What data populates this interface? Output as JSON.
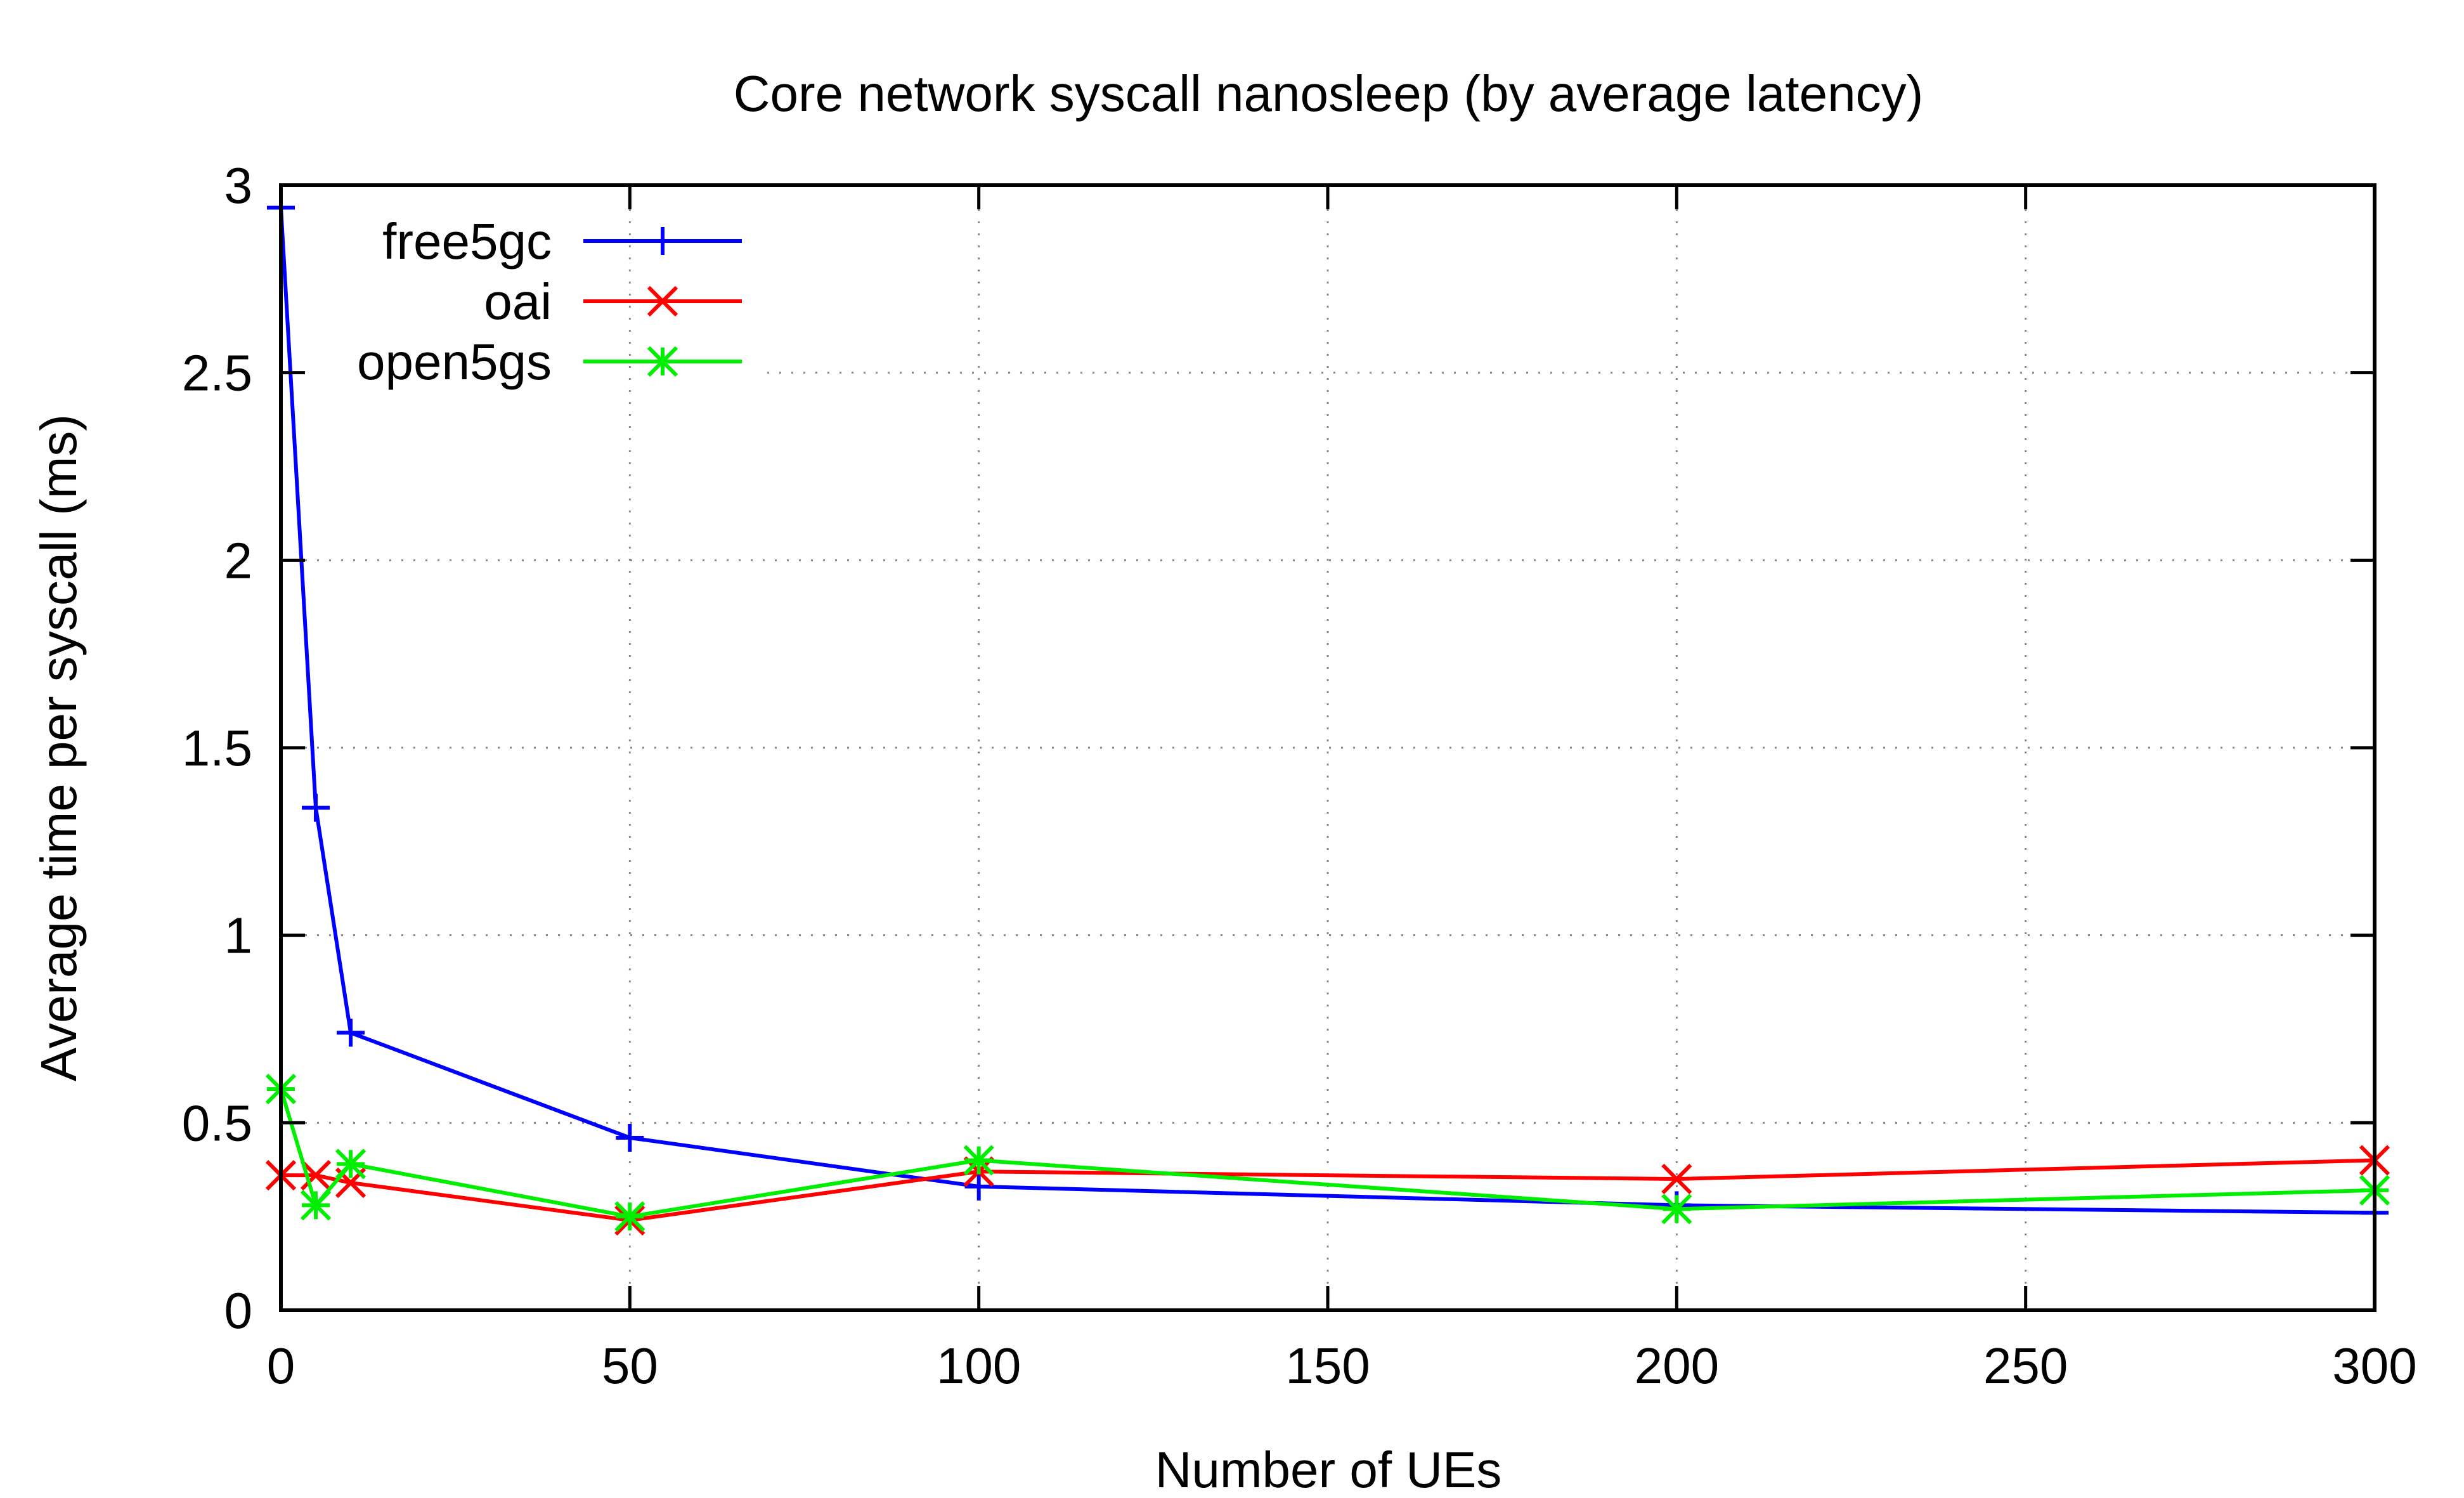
{
  "chart_data": {
    "type": "line",
    "title": "Core network syscall nanosleep (by average latency)",
    "xlabel": "Number of UEs",
    "ylabel": "Average time per syscall (ms)",
    "xlim": [
      0,
      300
    ],
    "ylim": [
      0,
      3
    ],
    "xticks": [
      "0",
      "50",
      "100",
      "150",
      "200",
      "250",
      "300"
    ],
    "yticks": [
      "0",
      "0.5",
      "1",
      "1.5",
      "2",
      "2.5",
      "3"
    ],
    "grid": true,
    "legend_position": "top-left",
    "series": [
      {
        "name": "free5gc",
        "color": "#0000ff",
        "marker": "plus",
        "x": [
          0,
          5,
          10,
          50,
          100,
          200,
          300
        ],
        "y": [
          2.94,
          1.34,
          0.74,
          0.46,
          0.33,
          0.28,
          0.26
        ]
      },
      {
        "name": "oai",
        "color": "#ff0000",
        "marker": "cross",
        "x": [
          0,
          5,
          10,
          50,
          100,
          200,
          300
        ],
        "y": [
          0.36,
          0.36,
          0.34,
          0.24,
          0.37,
          0.35,
          0.4
        ]
      },
      {
        "name": "open5gs",
        "color": "#00ee00",
        "marker": "star",
        "x": [
          0,
          5,
          10,
          50,
          100,
          200,
          300
        ],
        "y": [
          0.59,
          0.28,
          0.39,
          0.25,
          0.4,
          0.27,
          0.32
        ]
      }
    ]
  }
}
